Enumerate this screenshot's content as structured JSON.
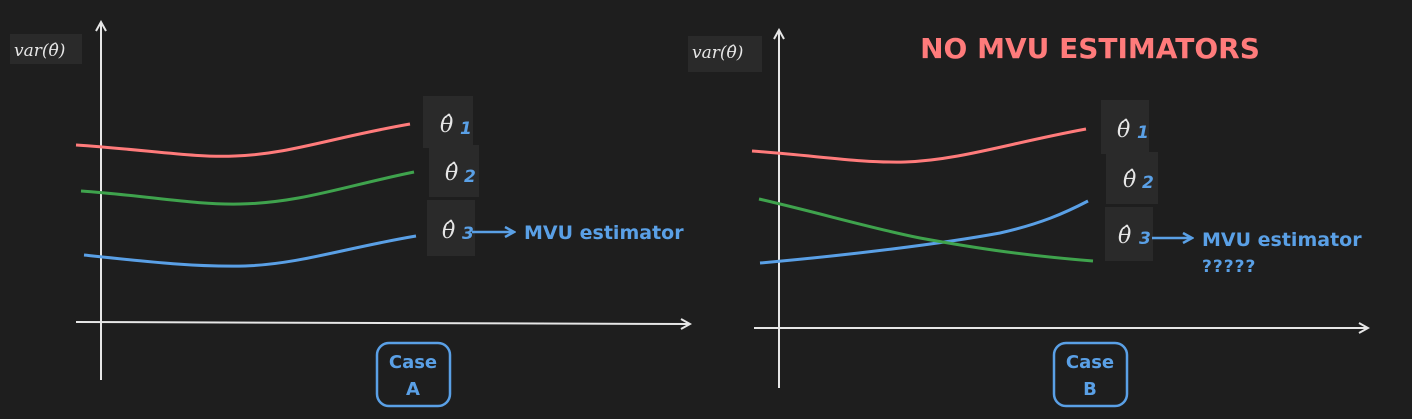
{
  "panel_a": {
    "y_axis_label": "var(θ̂)",
    "estimators": [
      {
        "symbol": "θ̂",
        "subscript": "1",
        "color": "#ff7b7b"
      },
      {
        "symbol": "θ̂",
        "subscript": "2",
        "color": "#3fa34d"
      },
      {
        "symbol": "θ̂",
        "subscript": "3",
        "color": "#5aa0e6"
      }
    ],
    "annotation": "MVU estimator",
    "case_label": [
      "Case",
      "A"
    ]
  },
  "panel_b": {
    "title": "NO MVU ESTIMATORS",
    "y_axis_label": "var(θ̂)",
    "estimators": [
      {
        "symbol": "θ̂",
        "subscript": "1",
        "color": "#ff7b7b"
      },
      {
        "symbol": "θ̂",
        "subscript": "2",
        "color": "#5aa0e6"
      },
      {
        "symbol": "θ̂",
        "subscript": "3",
        "color": "#3fa34d"
      }
    ],
    "annotation": "MVU estimator",
    "annotation_question": "?????",
    "case_label": [
      "Case",
      "B"
    ]
  },
  "colors": {
    "background": "#1e1e1e",
    "axis": "#e6e6e6",
    "label_box": "#2a2a2a",
    "title": "#ff7b7b",
    "accent": "#5aa0e6"
  }
}
